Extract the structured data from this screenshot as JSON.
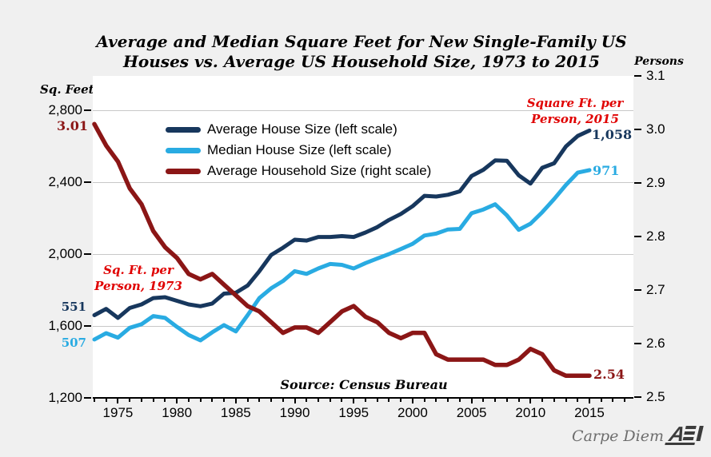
{
  "title": {
    "line1": "Average and Median Square Feet for New Single-Family US",
    "line2": "Houses vs. Average US Household Size, 1973 to 2015"
  },
  "axes": {
    "left_unit": "Sq. Feet",
    "right_unit": "Persons",
    "left_tick_labels": [
      "2,800",
      "2,400",
      "2,000",
      "1,600",
      "1,200"
    ],
    "left_tick_values": [
      2800,
      2400,
      2000,
      1600,
      1200
    ],
    "right_tick_labels": [
      "3.1",
      "3.0",
      "2.9",
      "2.8",
      "2.7",
      "2.6",
      "2.5"
    ],
    "right_tick_values": [
      3.1,
      3.0,
      2.9,
      2.8,
      2.7,
      2.6,
      2.5
    ],
    "x_tick_labels": [
      "1975",
      "1980",
      "1985",
      "1990",
      "1995",
      "2000",
      "2005",
      "2010",
      "2015"
    ],
    "x_label_values": [
      1975,
      1980,
      1985,
      1990,
      1995,
      2000,
      2005,
      2010,
      2015
    ]
  },
  "chart_data": {
    "type": "line",
    "title": "Average and Median Square Feet for New Single-Family US Houses vs. Average US Household Size, 1973 to 2015",
    "xlabel": "",
    "left_ylabel": "Sq. Feet",
    "right_ylabel": "Persons",
    "left_ylim": [
      1200,
      2800
    ],
    "right_ylim": [
      2.5,
      3.1
    ],
    "grid": "horizontal",
    "legend_position": "top-left-inside",
    "x": [
      1973,
      1974,
      1975,
      1976,
      1977,
      1978,
      1979,
      1980,
      1981,
      1982,
      1983,
      1984,
      1985,
      1986,
      1987,
      1988,
      1989,
      1990,
      1991,
      1992,
      1993,
      1994,
      1995,
      1996,
      1997,
      1998,
      1999,
      2000,
      2001,
      2002,
      2003,
      2004,
      2005,
      2006,
      2007,
      2008,
      2009,
      2010,
      2011,
      2012,
      2013,
      2014,
      2015
    ],
    "series": [
      {
        "name": "Average House Size (left scale)",
        "axis": "left",
        "color": "#17375d",
        "values": [
          1660,
          1695,
          1645,
          1700,
          1720,
          1755,
          1760,
          1740,
          1720,
          1710,
          1725,
          1780,
          1785,
          1825,
          1905,
          1995,
          2035,
          2080,
          2075,
          2095,
          2095,
          2100,
          2095,
          2120,
          2150,
          2190,
          2223,
          2266,
          2324,
          2320,
          2330,
          2349,
          2434,
          2469,
          2521,
          2519,
          2438,
          2392,
          2480,
          2505,
          2598,
          2657,
          2687
        ]
      },
      {
        "name": "Median House Size (left scale)",
        "axis": "left",
        "color": "#29abe2",
        "values": [
          1525,
          1560,
          1535,
          1590,
          1610,
          1655,
          1645,
          1595,
          1550,
          1520,
          1565,
          1605,
          1570,
          1660,
          1755,
          1810,
          1850,
          1905,
          1890,
          1920,
          1945,
          1940,
          1920,
          1950,
          1975,
          2000,
          2028,
          2057,
          2103,
          2114,
          2137,
          2140,
          2227,
          2248,
          2277,
          2215,
          2135,
          2169,
          2233,
          2306,
          2384,
          2453,
          2467
        ]
      },
      {
        "name": "Average Household Size (right scale)",
        "axis": "right",
        "color": "#8b1616",
        "values": [
          3.01,
          2.97,
          2.94,
          2.89,
          2.86,
          2.81,
          2.78,
          2.76,
          2.73,
          2.72,
          2.73,
          2.71,
          2.69,
          2.67,
          2.66,
          2.64,
          2.62,
          2.63,
          2.63,
          2.62,
          2.64,
          2.66,
          2.67,
          2.65,
          2.64,
          2.62,
          2.61,
          2.62,
          2.62,
          2.58,
          2.57,
          2.57,
          2.57,
          2.57,
          2.56,
          2.56,
          2.57,
          2.59,
          2.58,
          2.55,
          2.54,
          2.54,
          2.54
        ]
      }
    ]
  },
  "annotations": {
    "household_size_1973": "3.01",
    "avg_sqft_per_person_1973": "551",
    "med_sqft_per_person_1973": "507",
    "avg_sqft_per_person_2015": "1,058",
    "med_sqft_per_person_2015": "971",
    "household_size_2015": "2.54",
    "note_1973_line1": "Sq. Ft. per",
    "note_1973_line2": "Person, 1973",
    "note_2015_line1": "Square Ft. per",
    "note_2015_line2": "Person, 2015",
    "source": "Source: Census Bureau"
  },
  "footer": {
    "credit": "Carpe Diem",
    "logo": "AEI",
    "logo_a": "A"
  },
  "colors": {
    "annotation_red": "#e00000",
    "gridline": "#c8c8c8",
    "background": "#f0f0f0",
    "axis": "#000000"
  }
}
